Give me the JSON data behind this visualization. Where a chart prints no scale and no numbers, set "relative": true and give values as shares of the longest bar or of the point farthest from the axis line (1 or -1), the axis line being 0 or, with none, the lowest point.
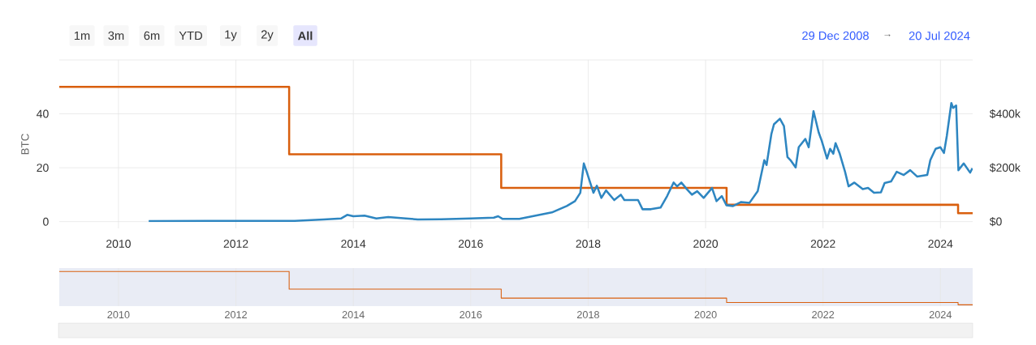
{
  "chart_data": [
    {
      "type": "line",
      "ylabel": "BTC",
      "xlim": [
        "2008-12-29",
        "2024-07-20"
      ],
      "xticks": [
        "2010",
        "2012",
        "2014",
        "2016",
        "2018",
        "2020",
        "2022",
        "2024"
      ],
      "ylim": [
        -2.5,
        60
      ],
      "yticks": [
        0,
        20,
        40,
        {
          "value": 60,
          "label": null
        }
      ],
      "y2lim": [
        -25000,
        600000
      ],
      "y2ticks": [
        {
          "value": 0,
          "label": "$0"
        },
        {
          "value": 200000,
          "label": "$200k"
        },
        {
          "value": 400000,
          "label": "$400k"
        },
        {
          "value": 600000,
          "label": null
        }
      ],
      "grid": true,
      "annotations": [
        "1m",
        "3m",
        "6m",
        "YTD",
        "1y",
        "2y",
        "All",
        "29 Dec 2008",
        "→",
        "20 Jul 2024"
      ],
      "series": [
        {
          "type": "step",
          "color": "#d95f0e",
          "x": [
            "2008-12-29",
            "2012-11-28",
            "2016-07-09",
            "2020-05-11",
            "2024-04-20",
            "2024-07-20"
          ],
          "values": [
            50,
            25,
            12.5,
            6.25,
            3.125,
            3.125
          ]
        },
        {
          "type": "line",
          "axis": "y2",
          "color": "#2e86c1",
          "x": [
            "2010-07-08",
            "2012-01-01",
            "2013-01-01",
            "2013-07-01",
            "2013-10-18",
            "2013-11-24",
            "2014-01-01",
            "2014-03-12",
            "2014-05-24",
            "2014-08-06",
            "2014-11-24",
            "2015-02-06",
            "2015-07-01",
            "2016-01-01",
            "2016-05-24",
            "2016-06-20",
            "2016-07-18",
            "2016-10-30",
            "2017-05-20",
            "2017-08-21",
            "2017-10-11",
            "2017-11-13",
            "2017-12-05",
            "2017-12-23",
            "2018-02-03",
            "2018-02-24",
            "2018-03-24",
            "2018-04-22",
            "2018-06-12",
            "2018-07-23",
            "2018-08-14",
            "2018-11-07",
            "2018-12-05",
            "2019-01-26",
            "2019-03-27",
            "2019-05-07",
            "2019-06-16",
            "2019-07-08",
            "2019-08-03",
            "2019-09-09",
            "2019-10-08",
            "2019-11-10",
            "2019-12-20",
            "2020-02-10",
            "2020-03-09",
            "2020-04-11",
            "2020-05-10",
            "2020-06-20",
            "2020-08-10",
            "2020-10-01",
            "2020-11-21",
            "2021-01-01",
            "2021-01-15",
            "2021-02-14",
            "2021-03-02",
            "2021-04-08",
            "2021-05-03",
            "2021-05-25",
            "2021-06-13",
            "2021-07-15",
            "2021-08-03",
            "2021-09-13",
            "2021-10-04",
            "2021-11-03",
            "2021-12-05",
            "2021-12-24",
            "2022-01-26",
            "2022-02-14",
            "2022-03-06",
            "2022-03-20",
            "2022-04-15",
            "2022-05-18",
            "2022-06-09",
            "2022-07-15",
            "2022-09-05",
            "2022-10-08",
            "2022-11-14",
            "2022-12-27",
            "2023-01-19",
            "2023-02-28",
            "2023-04-04",
            "2023-05-18",
            "2023-06-27",
            "2023-08-10",
            "2023-10-11",
            "2023-10-30",
            "2023-12-02",
            "2024-01-01",
            "2024-01-23",
            "2024-02-10",
            "2024-03-09",
            "2024-03-20",
            "2024-04-08",
            "2024-04-22",
            "2024-05-25",
            "2024-07-04",
            "2024-07-18"
          ],
          "values": [
            2000,
            3000,
            3000,
            8000,
            12000,
            25000,
            20000,
            22000,
            12000,
            17000,
            12000,
            8000,
            9000,
            12000,
            15000,
            20000,
            10000,
            10000,
            34000,
            58000,
            76000,
            107000,
            216000,
            185000,
            107000,
            133000,
            88000,
            116000,
            80000,
            100000,
            80000,
            80000,
            46000,
            46000,
            52000,
            95000,
            145000,
            131000,
            145000,
            119000,
            100000,
            113000,
            88000,
            125000,
            76000,
            95000,
            61000,
            58000,
            73000,
            70000,
            113000,
            228000,
            210000,
            325000,
            361000,
            382000,
            355000,
            240000,
            228000,
            201000,
            276000,
            307000,
            276000,
            410000,
            331000,
            300000,
            234000,
            270000,
            252000,
            291000,
            252000,
            185000,
            131000,
            145000,
            121000,
            125000,
            107000,
            109000,
            143000,
            149000,
            185000,
            173000,
            191000,
            167000,
            173000,
            228000,
            270000,
            276000,
            255000,
            319000,
            440000,
            422000,
            431000,
            191000,
            216000,
            182000,
            198000
          ]
        }
      ]
    },
    {
      "type": "step",
      "relative": true,
      "color": "#d95f0e",
      "grid": "x",
      "xlim": [
        "2008-12-29",
        "2024-07-20"
      ],
      "xticks": [
        "2010",
        "2012",
        "2014",
        "2016",
        "2018",
        "2020",
        "2022",
        "2024"
      ],
      "x": [
        "2008-12-29",
        "2012-11-28",
        "2016-07-09",
        "2020-05-11",
        "2024-04-20",
        "2024-07-20"
      ],
      "values": [
        1,
        0.47,
        0.2,
        0.07,
        0,
        0
      ]
    }
  ]
}
